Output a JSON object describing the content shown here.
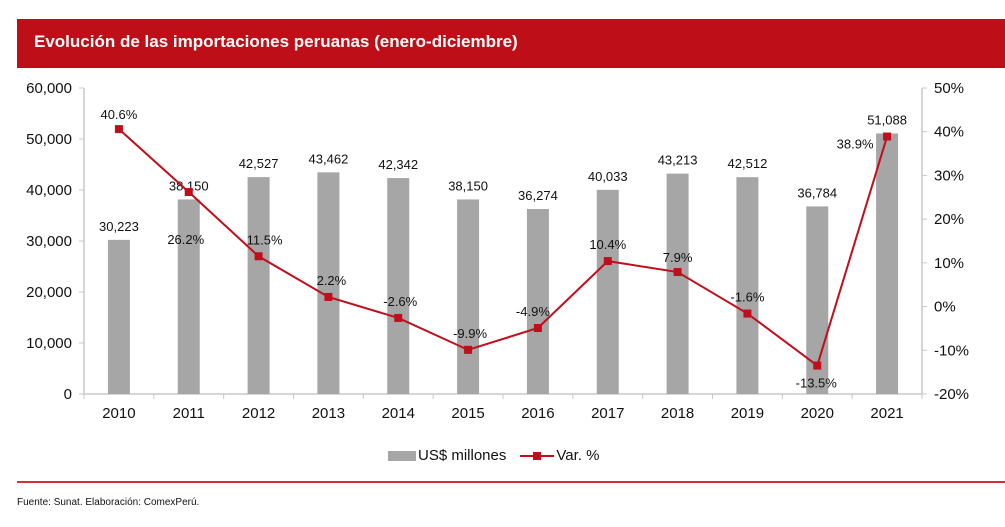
{
  "header": {
    "title": "Evolución de las importaciones peruanas (enero-diciembre)"
  },
  "colors": {
    "brand_red": "#be0f19",
    "bar_gray": "#a6a6a6",
    "line_red": "#c00e1c"
  },
  "chart_data": {
    "type": "bar+line",
    "title": "Evolución de las importaciones peruanas (enero-diciembre)",
    "categories": [
      "2010",
      "2011",
      "2012",
      "2013",
      "2014",
      "2015",
      "2016",
      "2017",
      "2018",
      "2019",
      "2020",
      "2021"
    ],
    "series": [
      {
        "name": "US$ millones",
        "type": "bar",
        "axis": "left",
        "values": [
          30223,
          38150,
          42527,
          43462,
          42342,
          38150,
          36274,
          40033,
          43213,
          42512,
          36784,
          51088
        ],
        "labels": [
          "30,223",
          "38,150",
          "42,527",
          "43,462",
          "42,342",
          "38,150",
          "36,274",
          "40,033",
          "43,213",
          "42,512",
          "36,784",
          "51,088"
        ]
      },
      {
        "name": "Var. %",
        "type": "line",
        "axis": "right",
        "values": [
          40.6,
          26.2,
          11.5,
          2.2,
          -2.6,
          -9.9,
          -4.9,
          10.4,
          7.9,
          -1.6,
          -13.5,
          38.9
        ],
        "labels": [
          "40.6%",
          "26.2%",
          "11.5%",
          "2.2%",
          "-2.6%",
          "-9.9%",
          "-4.9%",
          "10.4%",
          "7.9%",
          "-1.6%",
          "-13.5%",
          "38.9%"
        ]
      }
    ],
    "left_axis": {
      "ylim": [
        0,
        60000
      ],
      "ticks": [
        "0",
        "10,000",
        "20,000",
        "30,000",
        "40,000",
        "50,000",
        "60,000"
      ]
    },
    "right_axis": {
      "ylim": [
        -20,
        50
      ],
      "ticks": [
        "-20%",
        "-10%",
        "0%",
        "10%",
        "20%",
        "30%",
        "40%",
        "50%"
      ]
    },
    "legend": {
      "position": "bottom",
      "items": [
        "US$ millones",
        "Var. %"
      ]
    },
    "grid": false
  },
  "footer": {
    "source": "Fuente: Sunat. Elaboración: ComexPerú."
  }
}
